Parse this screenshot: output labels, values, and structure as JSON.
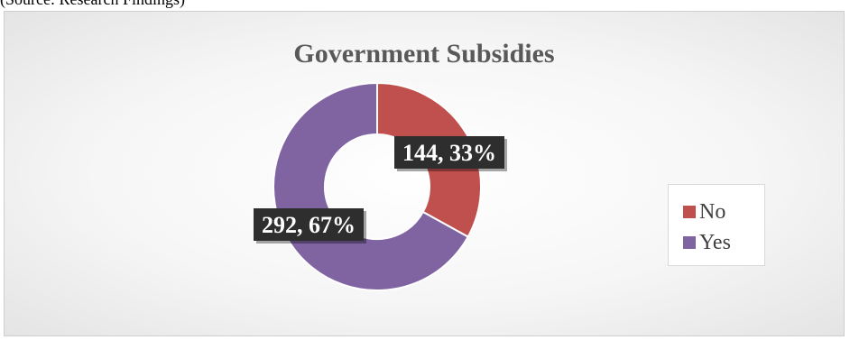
{
  "caption": "(Source: Research Findings)",
  "chart_data": {
    "type": "pie",
    "variant": "donut",
    "title": "Government Subsidies",
    "categories": [
      "No",
      "Yes"
    ],
    "values": [
      144,
      292
    ],
    "percentages": [
      "33%",
      "67%"
    ],
    "data_labels": [
      "144, 33%",
      "292, 67%"
    ],
    "colors": [
      "#c0504d",
      "#8064a2"
    ],
    "legend_position": "right"
  }
}
